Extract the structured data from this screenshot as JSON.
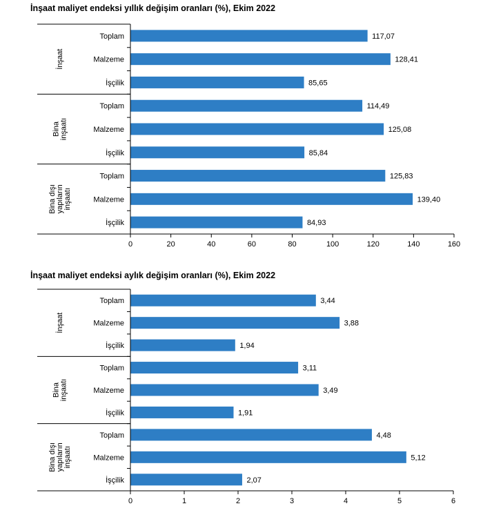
{
  "chart_data": [
    {
      "type": "bar",
      "orientation": "horizontal",
      "title": "İnşaat maliyet endeksi yıllık değişim oranları (%), Ekim 2022",
      "groups": [
        {
          "label": [
            "İnşaat"
          ],
          "categories": [
            "Toplam",
            "Malzeme",
            "İşçilik"
          ],
          "values": [
            117.07,
            128.41,
            85.65
          ],
          "value_labels": [
            "117,07",
            "128,41",
            "85,65"
          ]
        },
        {
          "label": [
            "Bina",
            "inşaatı"
          ],
          "categories": [
            "Toplam",
            "Malzeme",
            "İşçilik"
          ],
          "values": [
            114.49,
            125.08,
            85.84
          ],
          "value_labels": [
            "114,49",
            "125,08",
            "85,84"
          ]
        },
        {
          "label": [
            "Bina dışı",
            "yapıların",
            "inşaatı"
          ],
          "categories": [
            "Toplam",
            "Malzeme",
            "İşçilik"
          ],
          "values": [
            125.83,
            139.4,
            84.93
          ],
          "value_labels": [
            "125,83",
            "139,40",
            "84,93"
          ]
        }
      ],
      "xlim": [
        0,
        160
      ],
      "ticks": [
        0,
        20,
        40,
        60,
        80,
        100,
        120,
        140,
        160
      ],
      "tick_labels": [
        "0",
        "20",
        "40",
        "60",
        "80",
        "100",
        "120",
        "140",
        "160"
      ],
      "bar_color": "#2E7EC5",
      "grid": false,
      "legend": "none"
    },
    {
      "type": "bar",
      "orientation": "horizontal",
      "title": "İnşaat maliyet endeksi aylık değişim oranları (%), Ekim 2022",
      "groups": [
        {
          "label": [
            "İnşaat"
          ],
          "categories": [
            "Toplam",
            "Malzeme",
            "İşçilik"
          ],
          "values": [
            3.44,
            3.88,
            1.94
          ],
          "value_labels": [
            "3,44",
            "3,88",
            "1,94"
          ]
        },
        {
          "label": [
            "Bina",
            "inşaatı"
          ],
          "categories": [
            "Toplam",
            "Malzeme",
            "İşçilik"
          ],
          "values": [
            3.11,
            3.49,
            1.91
          ],
          "value_labels": [
            "3,11",
            "3,49",
            "1,91"
          ]
        },
        {
          "label": [
            "Bina dışı",
            "yapıların",
            "inşaatı"
          ],
          "categories": [
            "Toplam",
            "Malzeme",
            "İşçilik"
          ],
          "values": [
            4.48,
            5.12,
            2.07
          ],
          "value_labels": [
            "4,48",
            "5,12",
            "2,07"
          ]
        }
      ],
      "xlim": [
        0,
        6
      ],
      "ticks": [
        0,
        1,
        2,
        3,
        4,
        5,
        6
      ],
      "tick_labels": [
        "0",
        "1",
        "2",
        "3",
        "4",
        "5",
        "6"
      ],
      "bar_color": "#2E7EC5",
      "grid": false,
      "legend": "none"
    }
  ]
}
